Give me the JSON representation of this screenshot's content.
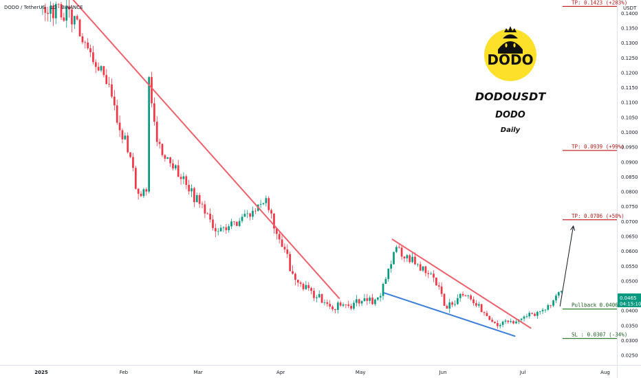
{
  "header": {
    "symbol_line": "DODO / TetherUS · 1D · BINANCE"
  },
  "branding": {
    "logo_text": "DODO",
    "logo_color": "#fde02a",
    "title": "DODOUSDT",
    "subtitle": "DODO",
    "timeframe": "Daily",
    "timeframe_color": "#e8741c"
  },
  "axis": {
    "currency": "USDT",
    "price_tag": "0.0465",
    "countdown": "04:15:10",
    "y_ticks": [
      "0.1400",
      "0.1350",
      "0.1300",
      "0.1250",
      "0.1200",
      "0.1150",
      "0.1100",
      "0.1050",
      "0.1000",
      "0.0950",
      "0.0900",
      "0.0850",
      "0.0800",
      "0.0750",
      "0.0700",
      "0.0650",
      "0.0600",
      "0.0550",
      "0.0500",
      "0.0450",
      "0.0400",
      "0.0350",
      "0.0300",
      "0.0250"
    ],
    "x_ticks": [
      "2025",
      "Feb",
      "Mar",
      "Apr",
      "May",
      "Jun",
      "Jul",
      "Aug"
    ]
  },
  "levels": [
    {
      "label": "TP: 0.1423 (+203%)",
      "price": 0.1423,
      "color": "#c62828"
    },
    {
      "label": "TP: 0.0939 (+99%)",
      "price": 0.0939,
      "color": "#c62828"
    },
    {
      "label": "TP:  0.0706 (+50%)",
      "price": 0.0706,
      "color": "#c62828"
    },
    {
      "label": "Pullback 0.0406",
      "price": 0.0406,
      "color": "#2e7d32"
    },
    {
      "label": "SL : 0.0307 (-34%)",
      "price": 0.0307,
      "color": "#2e7d32"
    }
  ],
  "chart_data": {
    "type": "candlestick",
    "symbol": "DODO / TetherUS",
    "exchange": "BINANCE",
    "interval": "1D",
    "ylim": [
      0.0225,
      0.144
    ],
    "up_color": "#089981",
    "down_color": "#f23645",
    "segments": [
      {
        "start": "2025-01-01",
        "end": "2025-01-13",
        "from": 0.142,
        "to": 0.139,
        "amp": 0.006
      },
      {
        "start": "2025-01-13",
        "end": "2025-01-20",
        "from": 0.139,
        "to": 0.128,
        "amp": 0.005
      },
      {
        "start": "2025-01-20",
        "end": "2025-01-27",
        "from": 0.128,
        "to": 0.114,
        "amp": 0.005
      },
      {
        "start": "2025-01-27",
        "end": "2025-02-02",
        "from": 0.114,
        "to": 0.097,
        "amp": 0.005
      },
      {
        "start": "2025-02-02",
        "end": "2025-02-07",
        "from": 0.097,
        "to": 0.079,
        "amp": 0.004
      },
      {
        "start": "2025-02-07",
        "end": "2025-02-10",
        "from": 0.079,
        "to": 0.081,
        "amp": 0.003
      },
      {
        "start": "2025-02-10",
        "end": "2025-02-11",
        "from": 0.081,
        "to": 0.118,
        "amp": 0.002
      },
      {
        "start": "2025-02-11",
        "end": "2025-02-14",
        "from": 0.118,
        "to": 0.096,
        "amp": 0.004
      },
      {
        "start": "2025-02-14",
        "end": "2025-02-26",
        "from": 0.096,
        "to": 0.081,
        "amp": 0.004
      },
      {
        "start": "2025-02-26",
        "end": "2025-03-10",
        "from": 0.081,
        "to": 0.066,
        "amp": 0.004
      },
      {
        "start": "2025-03-10",
        "end": "2025-03-27",
        "from": 0.066,
        "to": 0.077,
        "amp": 0.003
      },
      {
        "start": "2025-03-27",
        "end": "2025-04-07",
        "from": 0.077,
        "to": 0.05,
        "amp": 0.004
      },
      {
        "start": "2025-04-07",
        "end": "2025-04-21",
        "from": 0.05,
        "to": 0.041,
        "amp": 0.003
      },
      {
        "start": "2025-04-21",
        "end": "2025-05-08",
        "from": 0.041,
        "to": 0.044,
        "amp": 0.003
      },
      {
        "start": "2025-05-08",
        "end": "2025-05-15",
        "from": 0.044,
        "to": 0.061,
        "amp": 0.003
      },
      {
        "start": "2025-05-15",
        "end": "2025-05-29",
        "from": 0.061,
        "to": 0.051,
        "amp": 0.003
      },
      {
        "start": "2025-05-29",
        "end": "2025-06-03",
        "from": 0.051,
        "to": 0.041,
        "amp": 0.003
      },
      {
        "start": "2025-06-03",
        "end": "2025-06-10",
        "from": 0.041,
        "to": 0.046,
        "amp": 0.003
      },
      {
        "start": "2025-06-10",
        "end": "2025-06-22",
        "from": 0.046,
        "to": 0.035,
        "amp": 0.002
      },
      {
        "start": "2025-06-22",
        "end": "2025-07-10",
        "from": 0.035,
        "to": 0.04,
        "amp": 0.002
      },
      {
        "start": "2025-07-10",
        "end": "2025-07-16",
        "from": 0.04,
        "to": 0.0465,
        "amp": 0.002
      }
    ],
    "trendlines": [
      {
        "start_date": "2025-01-13",
        "start_price": 0.1445,
        "end_date": "2025-04-23",
        "end_price": 0.0442,
        "color": "#f0606b",
        "width": 2
      },
      {
        "start_date": "2025-05-13",
        "start_price": 0.064,
        "end_date": "2025-07-04",
        "end_price": 0.0342,
        "color": "#f0606b",
        "width": 2
      },
      {
        "start_date": "2025-05-10",
        "start_price": 0.046,
        "end_date": "2025-06-28",
        "end_price": 0.0315,
        "color": "#3b7ddd",
        "width": 2
      }
    ],
    "projection_arrow": {
      "start_date": "2025-07-15",
      "start_price": 0.0415,
      "end_date": "2025-07-20",
      "end_price": 0.0685
    }
  }
}
